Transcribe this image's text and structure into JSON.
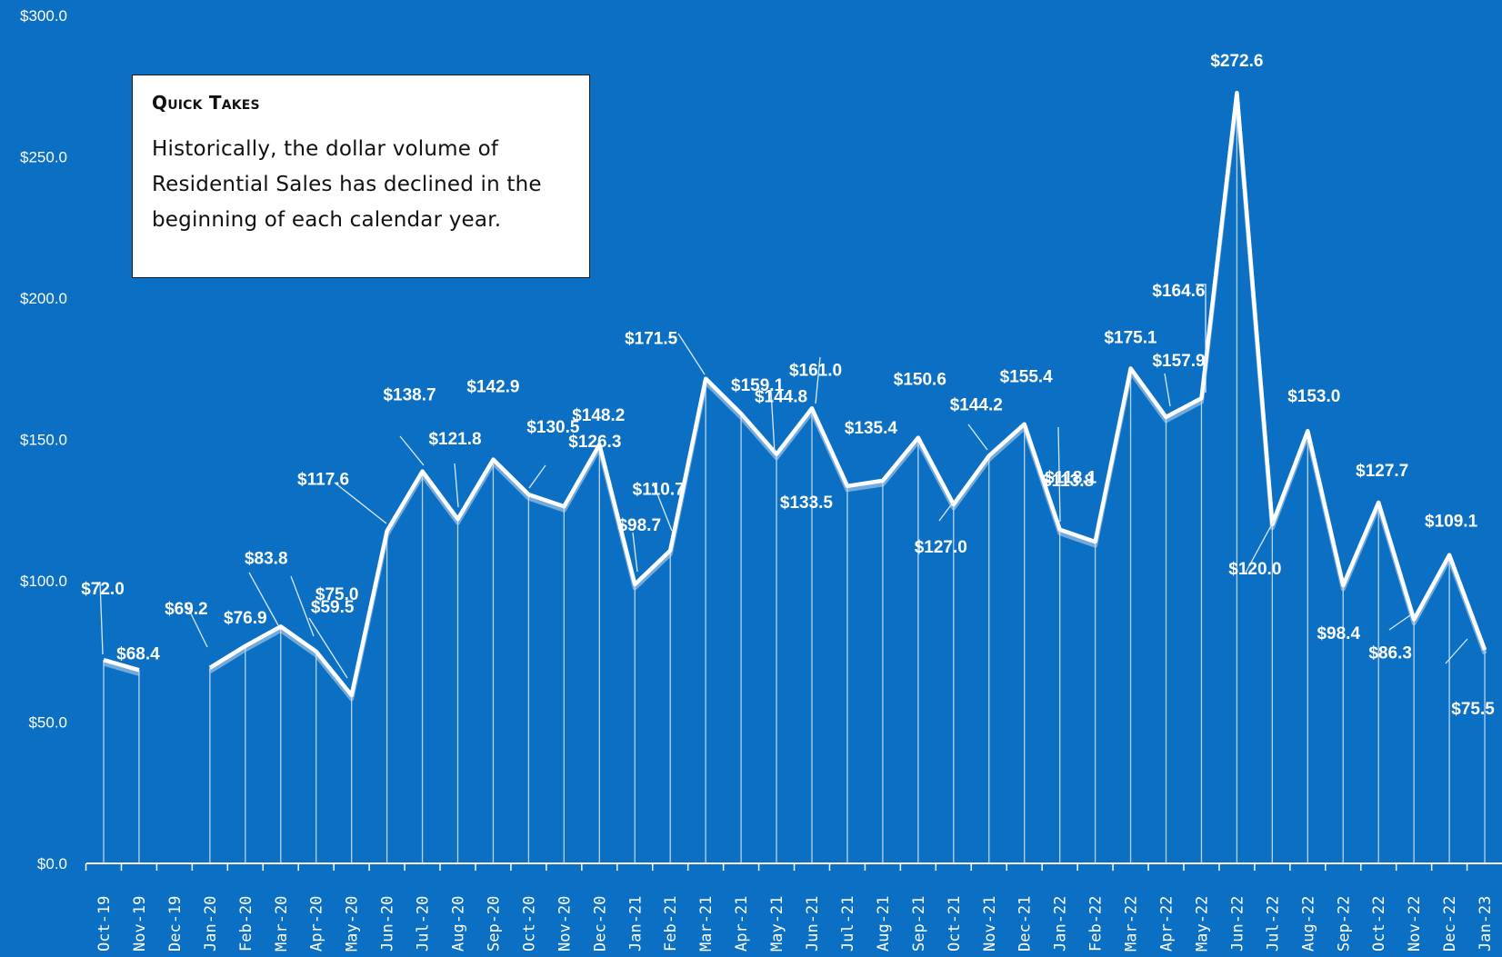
{
  "quick_takes": {
    "title": "Quick Takes",
    "body": "Historically, the dollar volume of Residential Sales has declined in the beginning of each calendar year."
  },
  "colors": {
    "background": "#0b6fc4",
    "line": "#ffffff",
    "drop_lines": "#d7e6f5"
  },
  "chart_data": {
    "type": "line",
    "ylim": [
      0,
      300
    ],
    "y_ticks": [
      "$0.0",
      "$50.0",
      "$100.0",
      "$150.0",
      "$200.0",
      "$250.0",
      "$300.0"
    ],
    "categories": [
      "Oct-19",
      "Nov-19",
      "Dec-19",
      "Jan-20",
      "Feb-20",
      "Mar-20",
      "Apr-20",
      "May-20",
      "Jun-20",
      "Jul-20",
      "Aug-20",
      "Sep-20",
      "Oct-20",
      "Nov-20",
      "Dec-20",
      "Jan-21",
      "Feb-21",
      "Mar-21",
      "Apr-21",
      "May-21",
      "Jun-21",
      "Jul-21",
      "Aug-21",
      "Sep-21",
      "Oct-21",
      "Nov-21",
      "Dec-21",
      "Jan-22",
      "Feb-22",
      "Mar-22",
      "Apr-22",
      "May-22",
      "Jun-22",
      "Jul-22",
      "Aug-22",
      "Sep-22",
      "Oct-22",
      "Nov-22",
      "Dec-22",
      "Jan-23"
    ],
    "values": [
      72.0,
      68.4,
      null,
      69.2,
      76.9,
      83.8,
      75.0,
      59.5,
      117.6,
      138.7,
      121.8,
      142.9,
      130.5,
      126.3,
      148.2,
      98.7,
      110.7,
      171.5,
      159.1,
      144.8,
      161.0,
      133.5,
      135.4,
      150.6,
      127.0,
      144.2,
      155.4,
      118.1,
      113.8,
      175.1,
      157.9,
      164.6,
      272.6,
      120.0,
      153.0,
      98.4,
      127.7,
      86.3,
      109.1,
      75.5
    ],
    "data_labels": [
      "$72.0",
      "$68.4",
      "",
      "$69.2",
      "$76.9",
      "$83.8",
      "$75.0",
      "$59.5",
      "$117.6",
      "$138.7",
      "$121.8",
      "$142.9",
      "$130.5",
      "$126.3",
      "$148.2",
      "$98.7",
      "$110.7",
      "$171.5",
      "$159.1",
      "$144.8",
      "$161.0",
      "$133.5",
      "$135.4",
      "$150.6",
      "$127.0",
      "$144.2",
      "$155.4",
      "$118.1",
      "$113.8",
      "$175.1",
      "$157.9",
      "$164.6",
      "$272.6",
      "$120.0",
      "$153.0",
      "$98.4",
      "$127.7",
      "$86.3",
      "$109.1",
      "$75.5"
    ],
    "grid": false,
    "legend": "none"
  }
}
